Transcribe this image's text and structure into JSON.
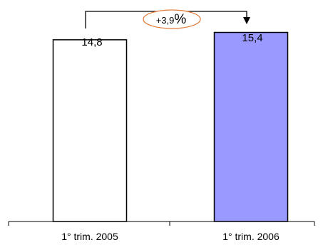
{
  "chart_data": {
    "type": "bar",
    "categories": [
      "1° trim. 2005",
      "1° trim. 2006"
    ],
    "values": [
      14.8,
      15.4
    ],
    "value_labels": [
      "14,8",
      "15,4"
    ],
    "title": "",
    "xlabel": "",
    "ylabel": "",
    "ylim": [
      0,
      16.3
    ],
    "grid": false,
    "legend": "none",
    "bar_colors": [
      "#ffffff",
      "#9999ff"
    ],
    "bar_stroke": "#000000",
    "change_annotation": {
      "number": "+3,9",
      "unit": "%",
      "ellipse_color": "#e07b39",
      "arrow_color": "#000000"
    }
  }
}
